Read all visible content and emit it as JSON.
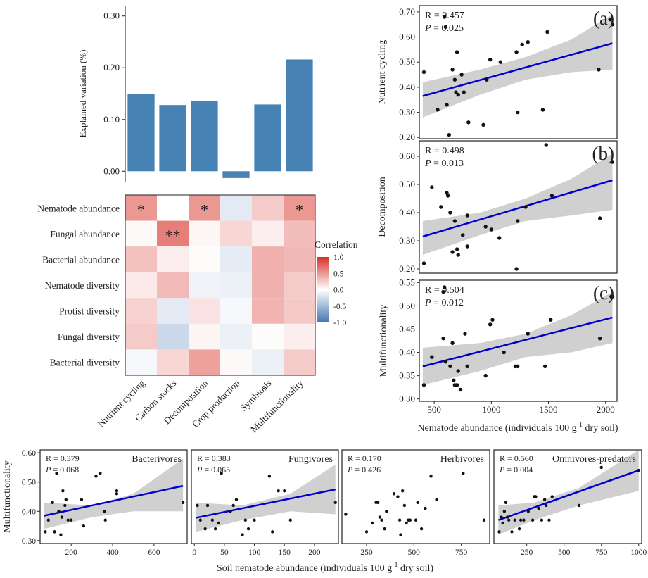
{
  "colors": {
    "bar": "#4682b4",
    "fit": "#0000cc",
    "band": "#d0d0d0",
    "point": "#111111",
    "heat_pos": "#d73027",
    "heat_neg": "#4575b4"
  },
  "chart_data": [
    {
      "id": "bar",
      "type": "bar",
      "title": "",
      "ylabel": "Explained variation (%)",
      "ylim": [
        -0.02,
        0.32
      ],
      "yticks": [
        0.0,
        0.1,
        0.2,
        0.3
      ],
      "ytick_labels": [
        "0.00",
        "0.10",
        "0.20",
        "0.30"
      ],
      "categories": [
        "Nutrient cycling",
        "Carbon stocks",
        "Decomposition",
        "Crop production",
        "Symbiosis",
        "Multifunctionality"
      ],
      "values": [
        0.149,
        0.128,
        0.135,
        -0.013,
        0.129,
        0.216
      ]
    },
    {
      "id": "heatmap",
      "type": "heatmap",
      "rows": [
        "Nematode abundance",
        "Fungal abundance",
        "Bacterial abundance",
        "Nematode diversity",
        "Protist diversity",
        "Fungal diversity",
        "Bacterial diversity"
      ],
      "cols": [
        "Nutrient cycling",
        "Carbon stocks",
        "Decomposition",
        "Crop production",
        "Symbiosis",
        "Multifunctionality"
      ],
      "values": [
        [
          0.5,
          0.0,
          0.5,
          -0.15,
          0.25,
          0.5
        ],
        [
          0.03,
          0.62,
          0.04,
          0.2,
          0.08,
          0.32
        ],
        [
          0.3,
          0.08,
          0.02,
          -0.14,
          0.38,
          0.34
        ],
        [
          0.1,
          0.33,
          -0.08,
          -0.1,
          0.38,
          0.25
        ],
        [
          0.22,
          -0.15,
          0.14,
          -0.05,
          0.36,
          0.26
        ],
        [
          0.25,
          -0.28,
          0.05,
          -0.1,
          0.02,
          0.08
        ],
        [
          -0.05,
          0.2,
          0.45,
          0.03,
          -0.1,
          0.25
        ]
      ],
      "annotations": [
        {
          "row": 0,
          "col": 0,
          "text": "*"
        },
        {
          "row": 1,
          "col": 1,
          "text": "**"
        },
        {
          "row": 0,
          "col": 2,
          "text": "*"
        },
        {
          "row": 0,
          "col": 5,
          "text": "*"
        }
      ],
      "legend": {
        "title": "Correlation",
        "ticks": [
          1.0,
          0.5,
          0.0,
          -0.5,
          -1.0
        ],
        "tick_labels": [
          "1.0",
          "0.5",
          "0.0",
          "-0.5",
          "-1.0"
        ],
        "range": [
          -1,
          1
        ]
      }
    },
    {
      "id": "a",
      "type": "scatter",
      "panel_label": "(a)",
      "ylabel": "Nutrient cycling",
      "xlim": [
        370,
        2100
      ],
      "ylim": [
        0.195,
        0.725
      ],
      "yticks": [
        0.2,
        0.3,
        0.4,
        0.5,
        0.6,
        0.7
      ],
      "ytick_labels": [
        "0.20",
        "0.30",
        "0.40",
        "0.50",
        "0.60",
        "0.70"
      ],
      "stat_r": "R = 0.457",
      "stat_p": " = 0.025",
      "fit": [
        [
          400,
          0.365
        ],
        [
          2060,
          0.575
        ]
      ],
      "band_upper": [
        [
          400,
          0.42
        ],
        [
          900,
          0.47
        ],
        [
          1300,
          0.52
        ],
        [
          1700,
          0.59
        ],
        [
          2060,
          0.69
        ]
      ],
      "band_lower": [
        [
          400,
          0.28
        ],
        [
          900,
          0.37
        ],
        [
          1300,
          0.43
        ],
        [
          1700,
          0.46
        ],
        [
          2060,
          0.47
        ]
      ],
      "points": [
        [
          410,
          0.46
        ],
        [
          530,
          0.31
        ],
        [
          590,
          0.68
        ],
        [
          600,
          0.64
        ],
        [
          610,
          0.33
        ],
        [
          630,
          0.21
        ],
        [
          660,
          0.47
        ],
        [
          680,
          0.43
        ],
        [
          690,
          0.38
        ],
        [
          700,
          0.54
        ],
        [
          710,
          0.37
        ],
        [
          740,
          0.45
        ],
        [
          760,
          0.38
        ],
        [
          800,
          0.26
        ],
        [
          930,
          0.25
        ],
        [
          960,
          0.43
        ],
        [
          990,
          0.51
        ],
        [
          1080,
          0.5
        ],
        [
          1220,
          0.54
        ],
        [
          1230,
          0.3
        ],
        [
          1270,
          0.57
        ],
        [
          1450,
          0.31
        ],
        [
          1490,
          0.62
        ],
        [
          1940,
          0.47
        ],
        [
          2060,
          0.65
        ],
        [
          2040,
          0.67
        ],
        [
          1320,
          0.58
        ]
      ]
    },
    {
      "id": "b",
      "type": "scatter",
      "panel_label": "(b)",
      "ylabel": "Decomposition",
      "xlim": [
        370,
        2100
      ],
      "ylim": [
        0.185,
        0.655
      ],
      "yticks": [
        0.2,
        0.3,
        0.4,
        0.5,
        0.6
      ],
      "ytick_labels": [
        "0.20",
        "0.30",
        "0.40",
        "0.50",
        "0.60"
      ],
      "stat_r": "R = 0.498",
      "stat_p": " = 0.013",
      "fit": [
        [
          400,
          0.315
        ],
        [
          2060,
          0.515
        ]
      ],
      "band_upper": [
        [
          400,
          0.37
        ],
        [
          900,
          0.4
        ],
        [
          1300,
          0.45
        ],
        [
          1700,
          0.52
        ],
        [
          2060,
          0.61
        ]
      ],
      "band_lower": [
        [
          400,
          0.25
        ],
        [
          900,
          0.32
        ],
        [
          1300,
          0.37
        ],
        [
          1700,
          0.39
        ],
        [
          2060,
          0.41
        ]
      ],
      "points": [
        [
          410,
          0.22
        ],
        [
          480,
          0.49
        ],
        [
          560,
          0.42
        ],
        [
          610,
          0.47
        ],
        [
          620,
          0.46
        ],
        [
          640,
          0.4
        ],
        [
          660,
          0.26
        ],
        [
          680,
          0.37
        ],
        [
          700,
          0.27
        ],
        [
          710,
          0.25
        ],
        [
          750,
          0.32
        ],
        [
          790,
          0.39
        ],
        [
          790,
          0.28
        ],
        [
          950,
          0.35
        ],
        [
          1000,
          0.34
        ],
        [
          1070,
          0.31
        ],
        [
          1220,
          0.2
        ],
        [
          1230,
          0.37
        ],
        [
          1300,
          0.42
        ],
        [
          1480,
          0.64
        ],
        [
          1530,
          0.46
        ],
        [
          1950,
          0.38
        ],
        [
          2060,
          0.58
        ]
      ]
    },
    {
      "id": "c",
      "type": "scatter",
      "panel_label": "(c)",
      "ylabel": "Multifunctionality",
      "xlabel": "Nematode abundance (individuals 100 g",
      "xlabel_sup": "-1",
      "xlabel_tail": " dry soil)",
      "xlim": [
        370,
        2100
      ],
      "ylim": [
        0.295,
        0.555
      ],
      "xticks": [
        500,
        1000,
        1500,
        2000
      ],
      "xtick_labels": [
        "500",
        "1000",
        "1500",
        "2000"
      ],
      "yticks": [
        0.3,
        0.35,
        0.4,
        0.45,
        0.5,
        0.55
      ],
      "ytick_labels": [
        "0.30",
        "0.35",
        "0.40",
        "0.45",
        "0.50",
        "0.55"
      ],
      "stat_r": "R = 0.504",
      "stat_p": " = 0.012",
      "fit": [
        [
          400,
          0.37
        ],
        [
          2060,
          0.475
        ]
      ],
      "band_upper": [
        [
          400,
          0.41
        ],
        [
          900,
          0.42
        ],
        [
          1300,
          0.44
        ],
        [
          1700,
          0.48
        ],
        [
          2060,
          0.53
        ]
      ],
      "band_lower": [
        [
          400,
          0.33
        ],
        [
          900,
          0.36
        ],
        [
          1300,
          0.39
        ],
        [
          1700,
          0.4
        ],
        [
          2060,
          0.42
        ]
      ],
      "points": [
        [
          410,
          0.33
        ],
        [
          480,
          0.39
        ],
        [
          580,
          0.43
        ],
        [
          600,
          0.38
        ],
        [
          640,
          0.37
        ],
        [
          660,
          0.42
        ],
        [
          670,
          0.34
        ],
        [
          680,
          0.33
        ],
        [
          700,
          0.33
        ],
        [
          710,
          0.36
        ],
        [
          730,
          0.32
        ],
        [
          770,
          0.44
        ],
        [
          790,
          0.37
        ],
        [
          950,
          0.35
        ],
        [
          990,
          0.46
        ],
        [
          1010,
          0.47
        ],
        [
          1110,
          0.4
        ],
        [
          1210,
          0.37
        ],
        [
          1230,
          0.37
        ],
        [
          1320,
          0.44
        ],
        [
          1470,
          0.37
        ],
        [
          1520,
          0.47
        ],
        [
          1950,
          0.43
        ],
        [
          2060,
          0.52
        ],
        [
          2050,
          0.52
        ],
        [
          580,
          0.53
        ],
        [
          590,
          0.54
        ]
      ]
    },
    {
      "id": "bacterivores",
      "type": "scatter",
      "title": "Bacterivores",
      "ylabel": "Multifunctionality",
      "xlim": [
        50,
        760
      ],
      "ylim": [
        0.29,
        0.61
      ],
      "xticks": [
        200,
        400,
        600
      ],
      "xtick_labels": [
        "200",
        "400",
        "600"
      ],
      "yticks": [
        0.3,
        0.4,
        0.5,
        0.6
      ],
      "ytick_labels": [
        "0.30",
        "0.40",
        "0.50",
        "0.60"
      ],
      "stat_r": "R = 0.379",
      "stat_p": " = 0.068",
      "fit": [
        [
          70,
          0.385
        ],
        [
          740,
          0.487
        ]
      ],
      "band_upper": [
        [
          70,
          0.43
        ],
        [
          300,
          0.42
        ],
        [
          500,
          0.46
        ],
        [
          740,
          0.58
        ]
      ],
      "band_lower": [
        [
          70,
          0.34
        ],
        [
          300,
          0.38
        ],
        [
          500,
          0.4
        ],
        [
          740,
          0.4
        ]
      ],
      "points": [
        [
          75,
          0.33
        ],
        [
          90,
          0.37
        ],
        [
          110,
          0.43
        ],
        [
          120,
          0.33
        ],
        [
          130,
          0.53
        ],
        [
          140,
          0.4
        ],
        [
          150,
          0.32
        ],
        [
          155,
          0.38
        ],
        [
          160,
          0.47
        ],
        [
          170,
          0.42
        ],
        [
          175,
          0.44
        ],
        [
          185,
          0.37
        ],
        [
          200,
          0.37
        ],
        [
          250,
          0.44
        ],
        [
          260,
          0.35
        ],
        [
          320,
          0.52
        ],
        [
          340,
          0.53
        ],
        [
          360,
          0.4
        ],
        [
          365,
          0.37
        ],
        [
          420,
          0.47
        ],
        [
          420,
          0.46
        ],
        [
          740,
          0.43
        ]
      ]
    },
    {
      "id": "fungivores",
      "type": "scatter",
      "title": "Fungivores",
      "xlim": [
        -5,
        240
      ],
      "ylim": [
        0.29,
        0.61
      ],
      "xticks": [
        0,
        50,
        100,
        150,
        200
      ],
      "xtick_labels": [
        "0",
        "50",
        "100",
        "150",
        "200"
      ],
      "stat_r": "R = 0.383",
      "stat_p": " = 0.065",
      "fit": [
        [
          3,
          0.378
        ],
        [
          235,
          0.475
        ]
      ],
      "band_upper": [
        [
          3,
          0.43
        ],
        [
          80,
          0.42
        ],
        [
          160,
          0.46
        ],
        [
          235,
          0.56
        ]
      ],
      "band_lower": [
        [
          3,
          0.33
        ],
        [
          80,
          0.37
        ],
        [
          160,
          0.4
        ],
        [
          235,
          0.39
        ]
      ],
      "points": [
        [
          5,
          0.42
        ],
        [
          10,
          0.37
        ],
        [
          18,
          0.34
        ],
        [
          22,
          0.42
        ],
        [
          30,
          0.37
        ],
        [
          35,
          0.34
        ],
        [
          40,
          0.36
        ],
        [
          45,
          0.53
        ],
        [
          60,
          0.4
        ],
        [
          65,
          0.42
        ],
        [
          70,
          0.44
        ],
        [
          80,
          0.32
        ],
        [
          85,
          0.37
        ],
        [
          90,
          0.34
        ],
        [
          100,
          0.37
        ],
        [
          125,
          0.52
        ],
        [
          130,
          0.33
        ],
        [
          140,
          0.47
        ],
        [
          150,
          0.47
        ],
        [
          160,
          0.37
        ],
        [
          235,
          0.43
        ]
      ]
    },
    {
      "id": "herbivores",
      "type": "scatter",
      "title": "Herbivores",
      "xlim": [
        120,
        900
      ],
      "ylim": [
        0.29,
        0.61
      ],
      "xticks": [
        250,
        500,
        750
      ],
      "xtick_labels": [
        "250",
        "500",
        "750"
      ],
      "stat_r": "R = 0.170",
      "stat_p": " = 0.426",
      "points": [
        [
          140,
          0.39
        ],
        [
          250,
          0.33
        ],
        [
          280,
          0.36
        ],
        [
          300,
          0.43
        ],
        [
          310,
          0.43
        ],
        [
          320,
          0.38
        ],
        [
          330,
          0.37
        ],
        [
          345,
          0.34
        ],
        [
          355,
          0.4
        ],
        [
          395,
          0.46
        ],
        [
          415,
          0.45
        ],
        [
          425,
          0.37
        ],
        [
          430,
          0.32
        ],
        [
          440,
          0.47
        ],
        [
          450,
          0.42
        ],
        [
          460,
          0.36
        ],
        [
          470,
          0.37
        ],
        [
          480,
          0.37
        ],
        [
          510,
          0.37
        ],
        [
          520,
          0.43
        ],
        [
          540,
          0.34
        ],
        [
          560,
          0.41
        ],
        [
          590,
          0.52
        ],
        [
          620,
          0.44
        ],
        [
          760,
          0.53
        ],
        [
          870,
          0.37
        ]
      ]
    },
    {
      "id": "omnivores",
      "type": "scatter",
      "title": "Omnivores-predators",
      "xlim": [
        30,
        1020
      ],
      "ylim": [
        0.29,
        0.61
      ],
      "xticks": [
        250,
        500,
        750,
        1000
      ],
      "xtick_labels": [
        "250",
        "500",
        "750",
        "1000"
      ],
      "stat_r": "R = 0.560",
      "stat_p": " = 0.004",
      "fit": [
        [
          60,
          0.37
        ],
        [
          1000,
          0.54
        ]
      ],
      "band_upper": [
        [
          60,
          0.42
        ],
        [
          300,
          0.43
        ],
        [
          600,
          0.48
        ],
        [
          1000,
          0.61
        ]
      ],
      "band_lower": [
        [
          60,
          0.32
        ],
        [
          300,
          0.37
        ],
        [
          600,
          0.42
        ],
        [
          1000,
          0.47
        ]
      ],
      "points": [
        [
          65,
          0.33
        ],
        [
          80,
          0.38
        ],
        [
          90,
          0.36
        ],
        [
          100,
          0.4
        ],
        [
          110,
          0.43
        ],
        [
          120,
          0.38
        ],
        [
          130,
          0.37
        ],
        [
          150,
          0.33
        ],
        [
          170,
          0.37
        ],
        [
          200,
          0.34
        ],
        [
          210,
          0.37
        ],
        [
          230,
          0.37
        ],
        [
          260,
          0.4
        ],
        [
          290,
          0.37
        ],
        [
          300,
          0.45
        ],
        [
          310,
          0.45
        ],
        [
          330,
          0.41
        ],
        [
          350,
          0.37
        ],
        [
          370,
          0.44
        ],
        [
          380,
          0.42
        ],
        [
          400,
          0.37
        ],
        [
          420,
          0.45
        ],
        [
          600,
          0.42
        ],
        [
          750,
          0.55
        ],
        [
          1000,
          0.54
        ]
      ]
    }
  ],
  "shared": {
    "bottom_xlabel": "Soil nematode abundance (individuals 100 g",
    "bottom_xlabel_sup": "-1",
    "bottom_xlabel_tail": " dry soil)",
    "p_symbol": "P"
  }
}
